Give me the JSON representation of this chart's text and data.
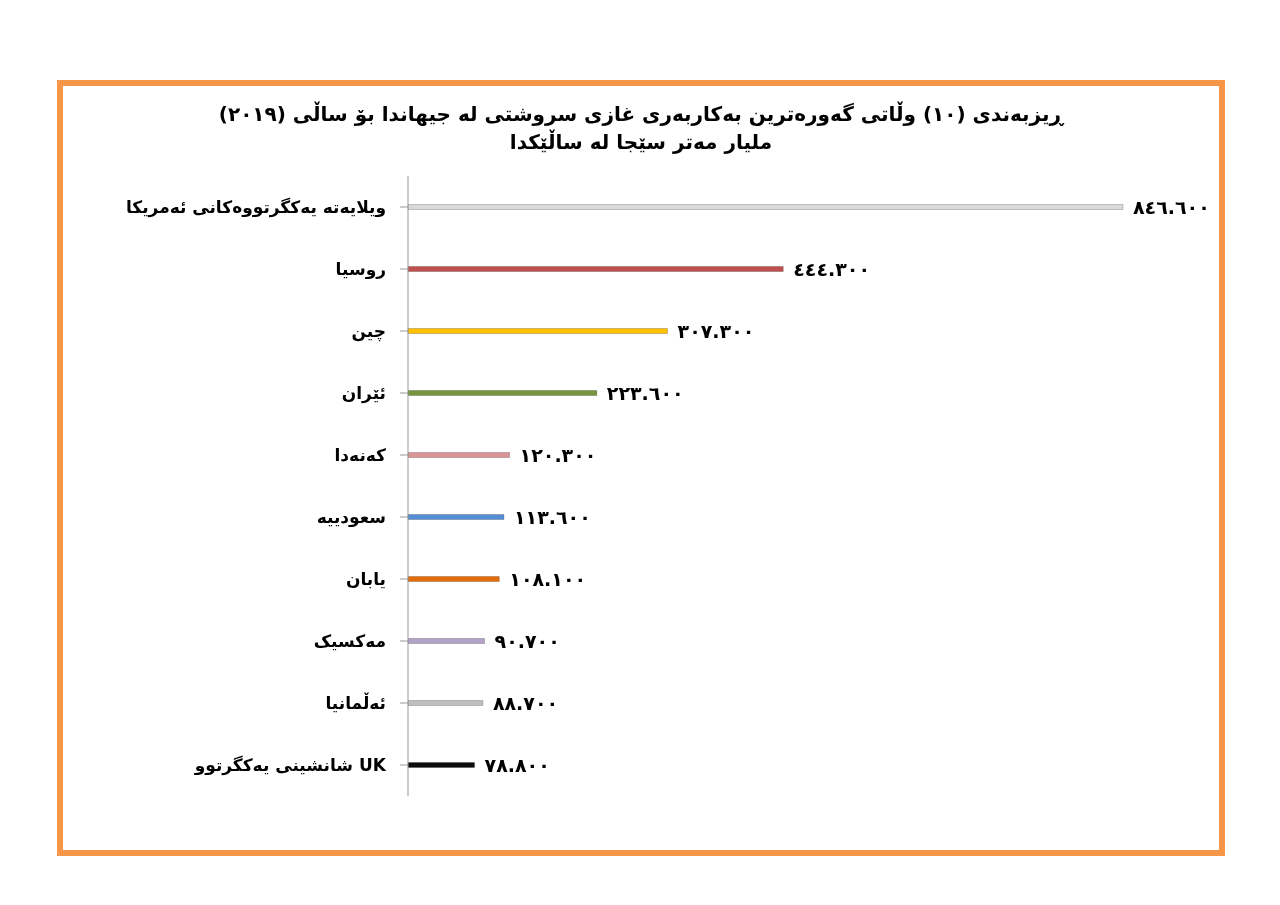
{
  "chart_data": {
    "type": "bar",
    "orientation": "horizontal",
    "title": "ڕیزبەندی (١٠) وڵاتی گەورەترین بەکاربەری غازی سروشتی لە جیهاندا بۆ ساڵی (٢٠١٩)",
    "subtitle": "ملیار مەتر سێجا لە ساڵێکدا",
    "categories": [
      "ویلایەتە یەکگرتووەکانی ئەمریکا",
      "روسیا",
      "چین",
      "ئێران",
      "کەنەدا",
      "سعودییە",
      "یابان",
      "مەکسیک",
      "ئەڵمانیا",
      "شانشینی یەکگرتوو UK"
    ],
    "values": [
      846.6,
      444.3,
      307.3,
      223.6,
      120.3,
      113.6,
      108.1,
      90.7,
      88.7,
      78.8
    ],
    "value_labels": [
      "٨٤٦.٦٠٠",
      "٤٤٤.٣٠٠",
      "٣٠٧.٣٠٠",
      "٢٢٣.٦٠٠",
      "١٢٠.٣٠٠",
      "١١٣.٦٠٠",
      "١٠٨.١٠٠",
      "٩٠.٧٠٠",
      "٨٨.٧٠٠",
      "٧٨.٨٠٠"
    ],
    "colors": [
      "#d9d9d9",
      "#c0504d",
      "#ffc000",
      "#77933c",
      "#d99694",
      "#558ed5",
      "#e46c0a",
      "#b3a2c7",
      "#bfbfbf",
      "#0d0d0d"
    ]
  }
}
